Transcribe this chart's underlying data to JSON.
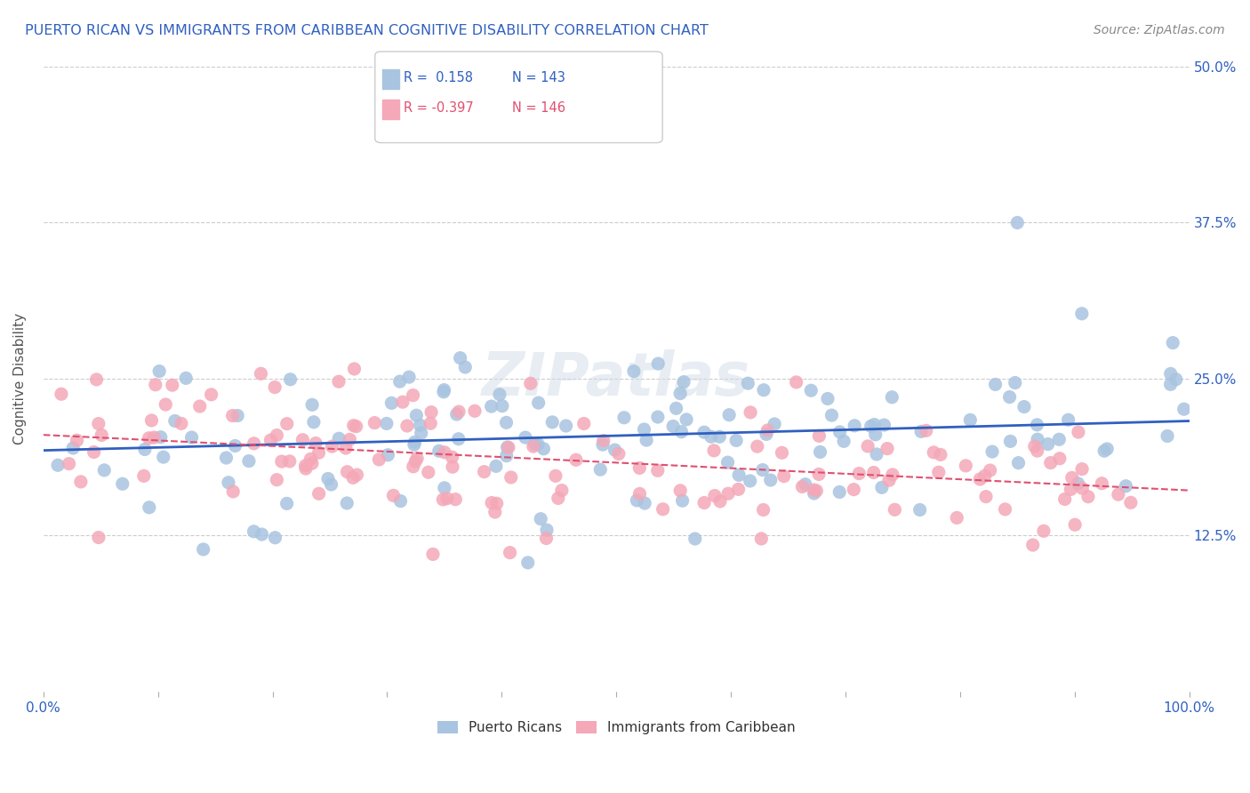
{
  "title": "PUERTO RICAN VS IMMIGRANTS FROM CARIBBEAN COGNITIVE DISABILITY CORRELATION CHART",
  "source": "Source: ZipAtlas.com",
  "ylabel": "Cognitive Disability",
  "r_blue": 0.158,
  "n_blue": 143,
  "r_pink": -0.397,
  "n_pink": 146,
  "x_min": 0.0,
  "x_max": 1.0,
  "y_min": 0.0,
  "y_max": 0.5,
  "y_ticks": [
    0.125,
    0.25,
    0.375,
    0.5
  ],
  "y_tick_labels": [
    "12.5%",
    "25.0%",
    "37.5%",
    "50.0%"
  ],
  "blue_color": "#a8c4e0",
  "pink_color": "#f4a8b8",
  "blue_line_color": "#3060c0",
  "pink_line_color": "#e05070",
  "watermark": "ZIPatlas",
  "background_color": "#ffffff",
  "legend_r_blue": "R =  0.158",
  "legend_n_blue": "N = 143",
  "legend_r_pink": "R = -0.397",
  "legend_n_pink": "N = 146",
  "label_blue": "Puerto Ricans",
  "label_pink": "Immigrants from Caribbean"
}
